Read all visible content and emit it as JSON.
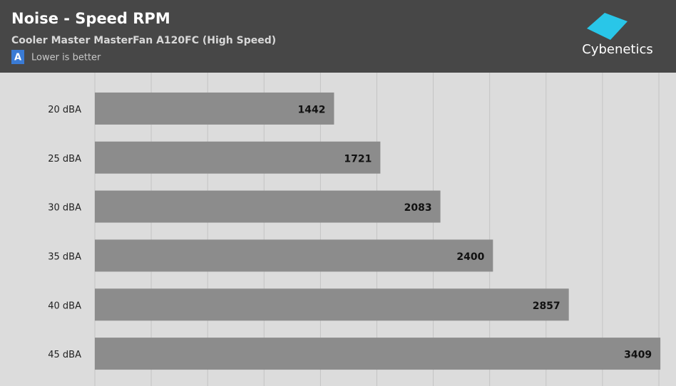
{
  "chart_data": {
    "type": "hbar",
    "title": "Noise - Speed RPM",
    "subtitle": "Cooler Master MasterFan A120FC (High Speed)",
    "badge": "A",
    "note": "Lower is better",
    "logo": "Cybenetics",
    "categories": [
      "20 dBA",
      "25 dBA",
      "30 dBA",
      "35 dBA",
      "40 dBA",
      "45 dBA"
    ],
    "values": [
      1442,
      1721,
      2083,
      2400,
      2857,
      3409
    ],
    "color": "#8c8c8c",
    "xlim": [
      0,
      3400
    ],
    "xticks": [
      0,
      340,
      680,
      1020,
      1360,
      1700,
      2040,
      2380,
      2720,
      3060,
      3400
    ],
    "grid": true
  }
}
